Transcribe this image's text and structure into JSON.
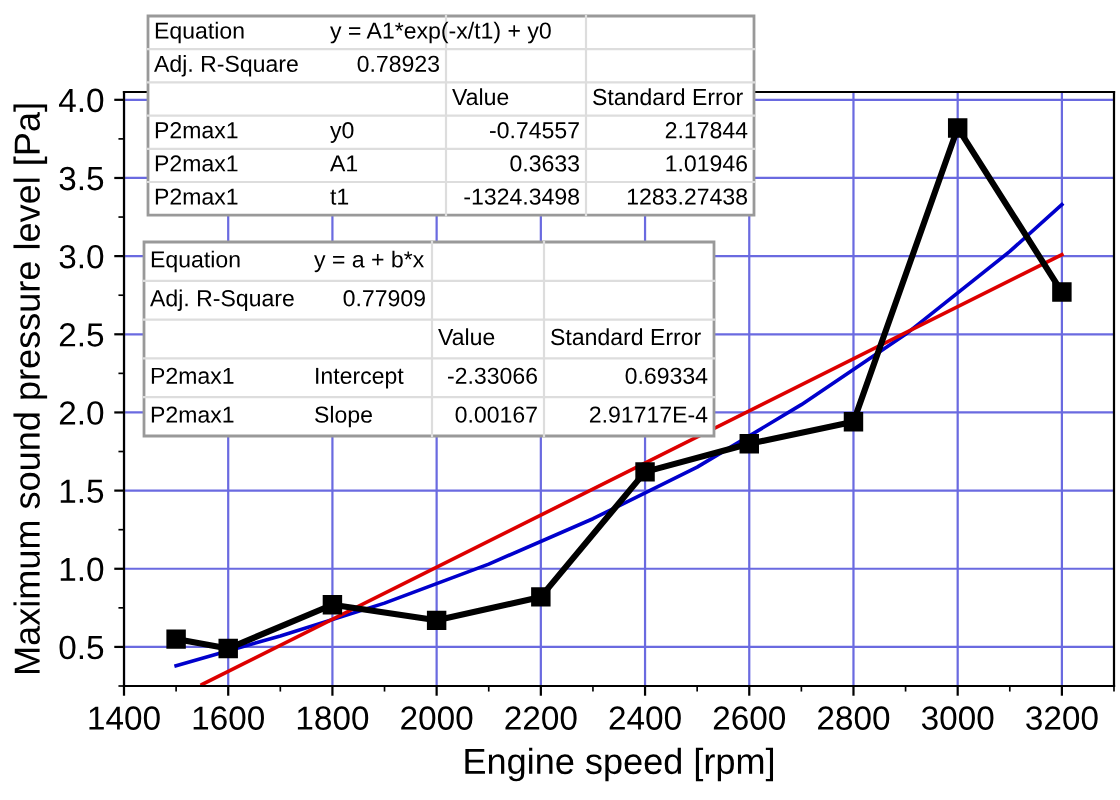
{
  "chart_data": {
    "type": "line",
    "xlabel": "Engine speed [rpm]",
    "ylabel": "Maximum sound pressure level [Pa]",
    "xlim": [
      1400,
      3300
    ],
    "xticks": [
      1400,
      1600,
      1800,
      2000,
      2200,
      2400,
      2600,
      2800,
      3000,
      3200
    ],
    "ylim": [
      0.25,
      4.05
    ],
    "yticks": [
      0.5,
      {
        "value": 1,
        "label": "1.0"
      },
      1.5,
      {
        "value": 2,
        "label": "2.0"
      },
      2.5,
      {
        "value": 3,
        "label": "3.0"
      },
      3.5,
      {
        "value": 4,
        "label": "4.0"
      }
    ],
    "grid": true,
    "series": [
      {
        "color": "#0000cc",
        "marker": "none",
        "x": [
          1500,
          1700,
          1900,
          2100,
          2300,
          2500,
          2700,
          2900,
          3100,
          3200
        ],
        "values": [
          0.38,
          0.57,
          0.78,
          1.03,
          1.32,
          1.65,
          2.05,
          2.5,
          3.03,
          3.33
        ]
      },
      {
        "color": "#dd0000",
        "marker": "none",
        "x": [
          1550,
          3200
        ],
        "values": [
          0.26,
          3.01
        ]
      },
      {
        "color": "#000000",
        "marker": "square",
        "x": [
          1500,
          1600,
          1800,
          2000,
          2200,
          2400,
          2600,
          2800,
          3000,
          3200
        ],
        "values": [
          0.55,
          0.49,
          0.77,
          0.67,
          0.82,
          1.62,
          1.8,
          1.94,
          3.82,
          2.77
        ]
      }
    ],
    "annotations": [
      "Equation",
      "y = A1*exp(-x/t1) + y0",
      "Adj. R-Square",
      "0.78923",
      "Value",
      "Standard Error",
      "P2max1",
      "y0",
      "-0.74557",
      "2.17844",
      "P2max1",
      "A1",
      "0.3633",
      "1.01946",
      "P2max1",
      "t1",
      "-1324.3498",
      "1283.27438",
      "Equation",
      "y = a + b*x",
      "Adj. R-Square",
      "0.77909",
      "Value",
      "Standard Error",
      "P2max1",
      "Intercept",
      "-2.33066",
      "0.69334",
      "P2max1",
      "Slope",
      "0.00167",
      "2.91717E-4"
    ]
  }
}
